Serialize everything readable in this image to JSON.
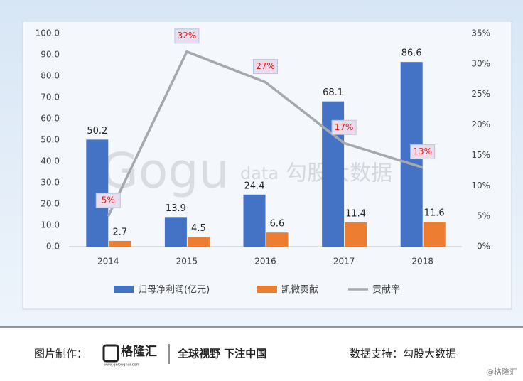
{
  "chart_data": {
    "type": "bar",
    "categories": [
      "2014",
      "2015",
      "2016",
      "2017",
      "2018"
    ],
    "series": [
      {
        "name": "归母净利润(亿元)",
        "color": "#4472c4",
        "values": [
          50.2,
          13.9,
          24.4,
          68.1,
          86.6
        ]
      },
      {
        "name": "凯微贡献",
        "color": "#ed7d31",
        "values": [
          2.7,
          4.5,
          6.6,
          11.4,
          11.6
        ]
      },
      {
        "name": "贡献率",
        "color": "#a5a8ad",
        "type": "line",
        "axis": "y2",
        "values": [
          5,
          32,
          27,
          17,
          13
        ],
        "value_labels": [
          "5%",
          "32%",
          "27%",
          "17%",
          "13%"
        ]
      }
    ],
    "ylim": [
      0,
      100
    ],
    "yticks": [
      {
        "value": 0,
        "label": "0.0"
      },
      {
        "value": 10,
        "label": "10.0"
      },
      {
        "value": 20,
        "label": "20.0"
      },
      {
        "value": 30,
        "label": "30.0"
      },
      {
        "value": 40,
        "label": "40.0"
      },
      {
        "value": 50,
        "label": "50.0"
      },
      {
        "value": 60,
        "label": "60.0"
      },
      {
        "value": 70,
        "label": "70.0"
      },
      {
        "value": 80,
        "label": "80.0"
      },
      {
        "value": 90,
        "label": "90.0"
      },
      {
        "value": 100,
        "label": "100.0"
      }
    ],
    "y2lim": [
      0,
      35
    ],
    "y2ticks": [
      {
        "value": 0,
        "label": "0%"
      },
      {
        "value": 5,
        "label": "5%"
      },
      {
        "value": 10,
        "label": "10%"
      },
      {
        "value": 15,
        "label": "15%"
      },
      {
        "value": 20,
        "label": "20%"
      },
      {
        "value": 25,
        "label": "25%"
      },
      {
        "value": 30,
        "label": "30%"
      },
      {
        "value": 35,
        "label": "35%"
      }
    ],
    "grid": false,
    "legend": "bottom"
  },
  "watermark": {
    "brand": "Gogu",
    "suffix": "data",
    "name": "勾股大数据"
  },
  "footer": {
    "made_by": "图片制作：",
    "logo": "格隆汇",
    "logo_url": "www.gelonghui.com",
    "slogan": "全球视野 下注中国",
    "data_by": "数据支持：勾股大数据",
    "credit": "@格隆汇"
  }
}
